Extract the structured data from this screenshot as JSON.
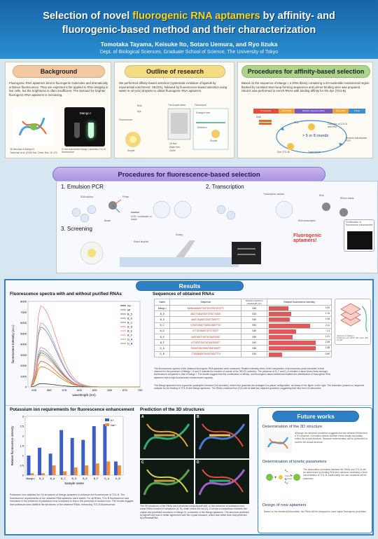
{
  "header": {
    "title_pre": "Selection of novel ",
    "title_highlight": "fluorogenic RNA aptamers",
    "title_post": " by affinity- and",
    "title_line2": "fluorogenic-based method and their characterization",
    "authors": "Tomotaka Tayama, Keisuke Ito, Sotaro Uemura, and Ryo Iizuka",
    "affiliation": "Dept. of Biological Sciences, Graduate School of Science, The University of Tokyo"
  },
  "background": {
    "title": "Background",
    "text": "Fluorogenic RNA aptamers bind to fluorogenic molecules and dramatically enhance fluorescence. They are expected to be applied to RNA imaging in live cells, but the brightness is often insufficient. The demand for brighter fluorogenic RNA aptamers is increasing.",
    "img1_caption": "3D structure of Mango III",
    "img1_cite": "Trachman et al. (2019) Nat. Chem. Biol. 15, 472",
    "img2_label": "Mango I",
    "img2_caption": "In vitro-transcribed Mango I aptamers TO1-B fluorescence"
  },
  "outline": {
    "title": "Outline of research",
    "text": "We performed affinity-based selection (systematic evolution of ligands by exponential enrichment; SELEX), followed by fluorescence-based selection using water-in-oil (w/o) droplets to obtain fluorogenic RNA aptamers.",
    "labels": [
      "RNA",
      "Dye",
      "Fluorescence",
      "Droplet",
      "The droplet sorter",
      "Fluorescent",
      "Enlarged view",
      "Oil flow",
      "Water flow",
      "Outlet",
      "Detection",
      "Droplet"
    ]
  },
  "affinity": {
    "title": "Procedures for affinity-based selection",
    "text": "Based on the sequence of Mango I, a DNA library containing a 23-nucleotide randomized region flanked by constant stem-loop-forming sequences and primer-binding sites was prepared. SELEX was performed to enrich RNAs with binding affinity for the dye (TO1-B).",
    "library": [
      "T7 promoter",
      "Stem (5nt)",
      "Random sequence (23nt)",
      "Stem (5nt)",
      "Primer"
    ],
    "labels": [
      "DNA",
      "RNA",
      "Dye (TO1-B)",
      "Collection of TO1-B with RNA",
      "× 5 or 8 rounds",
      "Reverse transcription PCR",
      "Transcription"
    ]
  },
  "fluorescence": {
    "title": "Procedures for fluorescence-based selection",
    "step1": "1. Emulsion PCR",
    "step2": "2. Transcription",
    "step3": "3. Screening",
    "labels": [
      "DNA solution",
      "Primer",
      "Beads",
      "KOD + purification of beads",
      "Transcription solution",
      "RNA",
      "RNA in beads",
      "RNA transcription",
      "Sorting",
      "Select droplets",
      "Confirmation of fluorescence enhancement"
    ],
    "fluo_label": "Fluorogenic aptamers!"
  },
  "results": {
    "title": "Results",
    "spectra": {
      "title": "Fluorescence spectra with and without purified RNAs",
      "xlabel": "wavelength (nm)",
      "ylabel": "fluorescence intensity (a.u.)"
    },
    "sequences": {
      "title": "Sequences of obtained RNAs",
      "headers": [
        "Name",
        "Sequence",
        "Emission maximum wavelength (nm)",
        "Relative fluorescence intensity"
      ],
      "rows": [
        {
          "name": "Mango I",
          "seq": "GAAGGAAGGATTGGTATGTGGTATATTC",
          "em": "536",
          "rel": "1.00"
        },
        {
          "name": "B_5",
          "seq": "AGATTAGGATGGTGTGGTTGGGT",
          "em": "533",
          "rel": "1.14"
        },
        {
          "name": "B_6",
          "seq": "AGATTAGAGGTGGGTTGGGTTT",
          "em": "535",
          "rel": "1.06"
        },
        {
          "name": "B_C",
          "seq": "GTGGTAGGGTTAGGGTAGGTTGT",
          "em": "534",
          "rel": "2.11"
        },
        {
          "name": "B_D",
          "seq": "ATTGGTAGGGTGTGTTGGTT",
          "em": "536",
          "rel": "1.4"
        },
        {
          "name": "B_E",
          "seq": "GAGTGGGTTGGTATGGATGGGT",
          "em": "535",
          "rel": "1.21"
        },
        {
          "name": "B_F",
          "seq": "ATTGGTGTGGTATGGATGGGTT",
          "em": "540",
          "rel": "2.39"
        },
        {
          "name": "D_A",
          "seq": "TGGGGTGGGTGGGTGGATGGGTT",
          "em": "538",
          "rel": "2.38"
        },
        {
          "name": "D_B",
          "seq": "TTGGGAGGGTGGGGTGGGTTTG",
          "em": "534",
          "rel": "0.69"
        }
      ],
      "note1": "The fluorescence spectra of the obtained fluorogenic RNA aptamers were measured. Relative intensity refers to the comparison of fluorescence peak intensities to that observed in the presence of Mango I. B and D indicate the number of rounds of the SELEX selection. The presence of B_F and D_A resulted in about three times stronger fluorescence compared to that of Mango I. The results suggest that the combination of affinity- and fluorogenic-based selections enables the identification of fluorogenic RNA aptamers with a high fluorescence enhancement capacity.",
      "note2": "The Mango aptamers form a guanine quadruplex structure (G4 structure), where four guanines are arranged in a planar configuration, as shown in the figure on the right. The resolution process on sequence analysis for the binding of TO1-B with Mango aptamers. The RNAs contained four (G4) with at least two adjacent guanines, suggesting that they form G4 structures.",
      "struct_caption": "Structure of Mango I",
      "struct_cite": "Trachman et al. (2017) Nat. Chem. Biol. 13, 807"
    },
    "potassium": {
      "title": "Potassium ion requirements for fluorescence enhancement",
      "xlabel": "Sample name",
      "ylabel": "Relative fluorescence intensity",
      "note": "Potassium ions stabilize the G4 structures of Mango aptamers to enhance the fluorescence of TO1-B. The fluorescence requirements of the obtained RNA aptamers were tested. For all RNAs, TO1-B fluorescence was increased in the presence of potassium ions compared to that in the presence of sodium ions. The results suggest that potassium ions stabilize the structures of the obtained RNAs, enhancing TO1-B fluorescence."
    },
    "prediction": {
      "title": "Prediction of the 3D structures",
      "panels": [
        "A",
        "B",
        "C",
        "D"
      ],
      "note": "The 3D structures of the RNAs were predicted using AlphaFold3. In the presence of potassium ions, some RNAs formed G4 structures (A, B), while others did not (C). D shows a comparison between the crystal and predicted structures of Mango III, a member of the Mango aptamers. The structure predicted by AlphaFold3 was in better agreement with the crystal structure, which was better than that predicted by trRosettaRNA."
    }
  },
  "future": {
    "title": "Future works",
    "h1": "Determination of the 3D structure",
    "t1": "Although the structure prediction suggests that the obtained RNAs form a G4 structure, it remains unclear whether these results accurately reflect the actual structure. Structure determination will be performed to confirm the actual structure.",
    "h2": "Determination of kinetic parameters",
    "t2": "The dissociation constants between the RNAs and TO1-B will be determined by titrating RNA into solutions containing a fixed concentration of TO1-B. Additionally, the rate constants will be examined.",
    "kon": "k",
    "koff": "k",
    "h3": "Design of new aptamers",
    "t3": "Based on the structural information, the RNAs will be designed to have higher fluorogenic properties."
  },
  "chart_data": [
    {
      "type": "line",
      "title": "Fluorescence spectra with and without purified RNAs",
      "xlabel": "wavelength (nm)",
      "ylabel": "fluorescence intensity (a.u.)",
      "x": [
        520,
        525,
        530,
        535,
        540,
        545,
        550,
        555,
        560,
        565,
        570,
        575,
        580,
        585,
        590,
        595,
        600,
        605,
        610,
        615,
        620
      ],
      "xticks": [
        525,
        550,
        575,
        600,
        625,
        650,
        675,
        700
      ],
      "xlim": [
        515,
        700
      ],
      "ylim": [
        0,
        8000
      ],
      "yticks": [
        0,
        1000,
        2000,
        3000,
        4000,
        5000,
        6000,
        7000,
        8000
      ],
      "series": [
        {
          "name": "NC",
          "peak": 300,
          "color": "#333333"
        },
        {
          "name": "MI",
          "peak": 2400,
          "color": "#e8553e"
        },
        {
          "name": "B_5",
          "peak": 3200,
          "color": "#4e79d8"
        },
        {
          "name": "B_6",
          "peak": 3400,
          "color": "#59a14f"
        },
        {
          "name": "B_C",
          "peak": 5600,
          "color": "#a05fd0"
        },
        {
          "name": "B_D",
          "peak": 3700,
          "color": "#e377c2"
        },
        {
          "name": "B_E",
          "peak": 3000,
          "color": "#f2a33a"
        },
        {
          "name": "B_F",
          "peak": 7600,
          "color": "#ff7f7f"
        },
        {
          "name": "D_A",
          "peak": 6000,
          "color": "#76b7b2"
        },
        {
          "name": "D_B",
          "peak": 1900,
          "color": "#b8860b"
        }
      ],
      "legend": "top-right"
    },
    {
      "type": "bar",
      "title": "Potassium ion requirements for fluorescence enhancement",
      "xlabel": "Sample name",
      "ylabel": "Relative fluorescence intensity",
      "categories": [
        "Mango I",
        "B_5",
        "B_6",
        "B_C",
        "B_D",
        "B_E",
        "B_F",
        "D_A",
        "D_B"
      ],
      "series": [
        {
          "name": "K+",
          "values": [
            1.0,
            1.4,
            1.1,
            2.3,
            1.9,
            1.8,
            2.5,
            2.6,
            0.7
          ],
          "color": "#3b5ec9"
        },
        {
          "name": "Na+",
          "values": [
            0.1,
            0.1,
            0.5,
            0.2,
            0.4,
            0.5,
            0.6,
            0.7,
            0.5
          ],
          "color": "#f08b3a"
        }
      ],
      "ylim": [
        0,
        3
      ],
      "legend": "top-right"
    }
  ]
}
